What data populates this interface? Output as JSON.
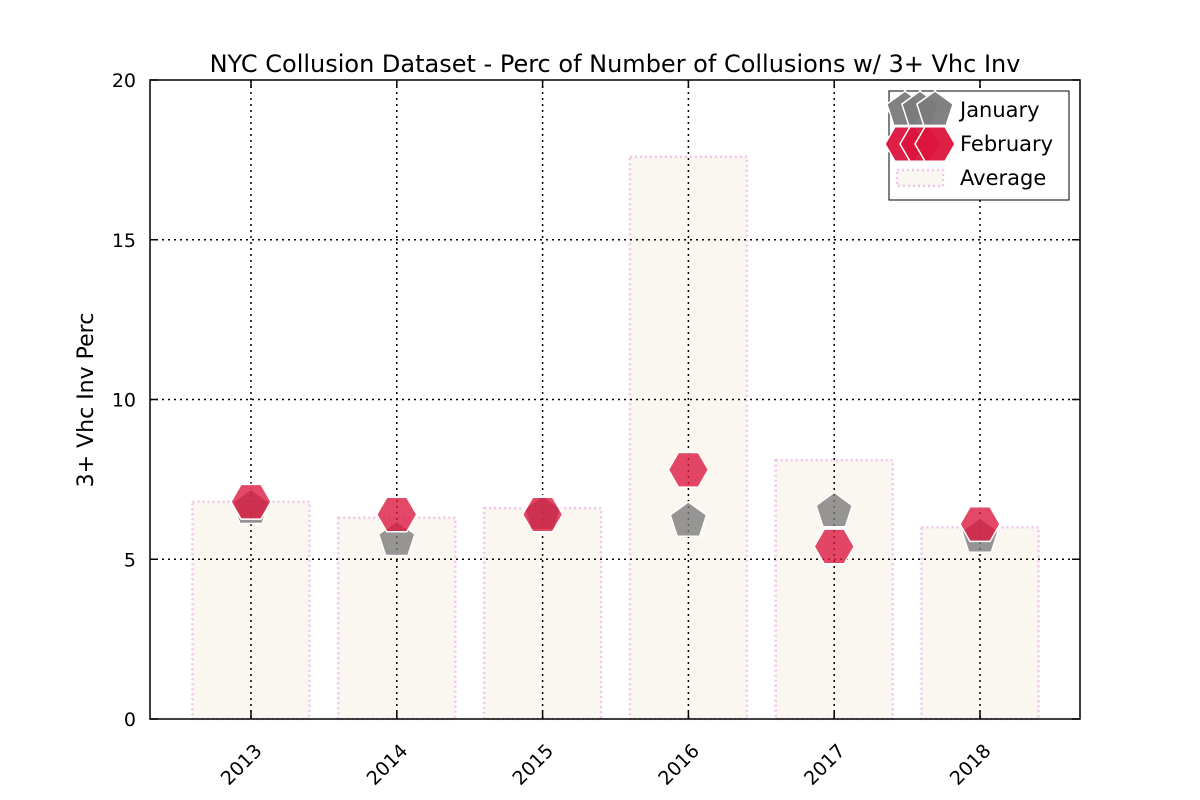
{
  "chart_data": {
    "type": "bar",
    "title": "NYC Collusion Dataset - Perc of Number of Collusions w/ 3+ Vhc Inv",
    "xlabel": "",
    "ylabel": "3+ Vhc Inv Perc",
    "ylim": [
      0,
      20
    ],
    "yticks": [
      "0",
      "5",
      "10",
      "15",
      "20"
    ],
    "categories": [
      "2013",
      "2014",
      "2015",
      "2016",
      "2017",
      "2018"
    ],
    "grid": true,
    "legend_position": "top-right",
    "series": [
      {
        "name": "January",
        "kind": "scatter",
        "marker": "pentagon",
        "color": "#7a7a7a",
        "values": [
          6.6,
          5.6,
          6.4,
          6.2,
          6.5,
          5.7
        ]
      },
      {
        "name": "February",
        "kind": "scatter",
        "marker": "hexagon",
        "color": "#dc143c",
        "values": [
          6.8,
          6.4,
          6.4,
          7.8,
          5.4,
          6.1
        ]
      },
      {
        "name": "Average",
        "kind": "bar",
        "color": "#faf6f0",
        "edge_color": "#f2c4ec",
        "values": [
          6.8,
          6.3,
          6.6,
          17.6,
          8.1,
          6.0
        ]
      }
    ]
  }
}
